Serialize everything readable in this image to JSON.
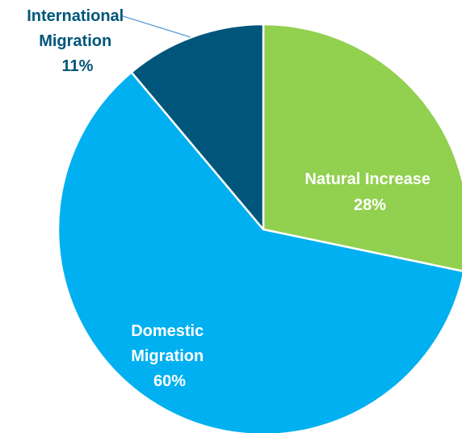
{
  "chart_data": {
    "type": "pie",
    "slices": [
      {
        "name": "Natural Increase",
        "label_lines": [
          "Natural Increase",
          "28%"
        ],
        "value": 28,
        "color": "#92D050",
        "label_color": "#ffffff"
      },
      {
        "name": "Domestic Migration",
        "label_lines": [
          "Domestic",
          "Migration",
          "60%"
        ],
        "value": 60,
        "color": "#00B0F0",
        "label_color": "#ffffff"
      },
      {
        "name": "International Migration",
        "label_lines": [
          "International",
          "Migration",
          "11%"
        ],
        "value": 11,
        "color": "#00567A",
        "label_color": "#00567A"
      }
    ],
    "slice_border_color": "#ffffff",
    "leader_line_color": "#5B9BD5",
    "legend": "none"
  }
}
